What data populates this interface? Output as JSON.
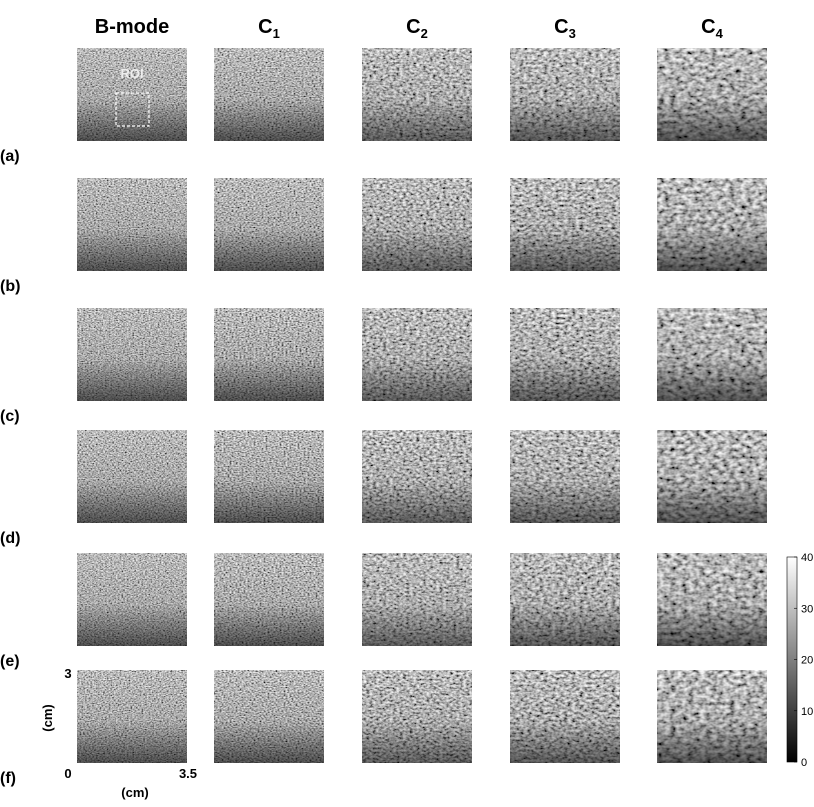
{
  "columns": [
    {
      "label": "B-mode"
    },
    {
      "base": "C",
      "sub": "1"
    },
    {
      "base": "C",
      "sub": "2"
    },
    {
      "base": "C",
      "sub": "3"
    },
    {
      "base": "C",
      "sub": "4"
    }
  ],
  "rows": [
    "(a)",
    "(b)",
    "(c)",
    "(d)",
    "(e)",
    "(f)"
  ],
  "roi_label": "ROI",
  "axes": {
    "y_top": "3",
    "y_label": "(cm)",
    "origin": "0",
    "x_end": "3.5",
    "x_label": "(cm)"
  },
  "colorbar": {
    "lim": [
      0,
      40
    ],
    "ticks": [
      0,
      10,
      20,
      30,
      40
    ]
  }
}
